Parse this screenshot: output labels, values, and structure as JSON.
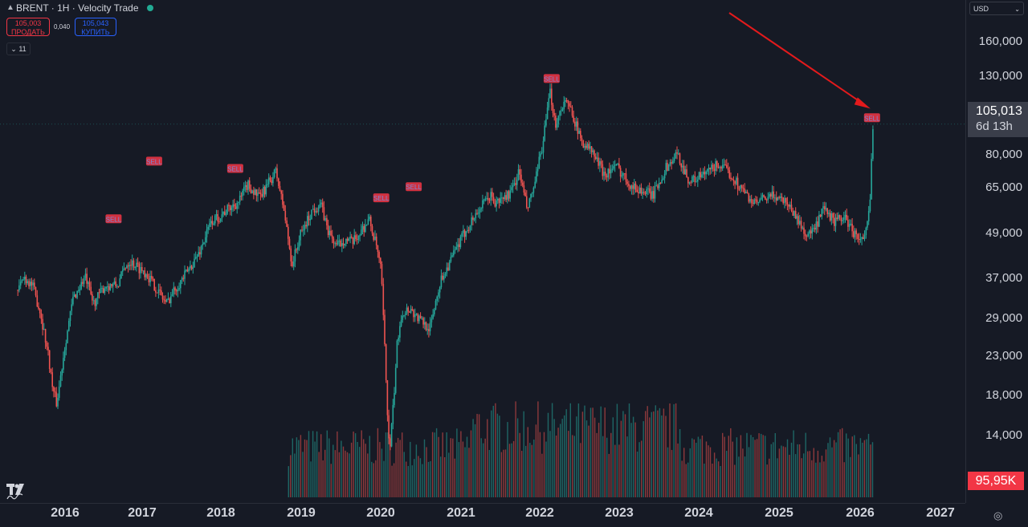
{
  "header": {
    "symbol": "BRENT · 1H · Velocity Trade"
  },
  "trade": {
    "sell_price": "105,003",
    "sell_label": "ПРОДАТЬ",
    "spread": "0,040",
    "buy_price": "105,043",
    "buy_label": "КУПИТЬ"
  },
  "indicators": {
    "count_label": "⌄ 11"
  },
  "price_axis": {
    "currency": "USD",
    "ticks": [
      "160,000",
      "130,000",
      "80,000",
      "65,000",
      "49,000",
      "37,000",
      "29,000",
      "23,000",
      "18,000",
      "14,000"
    ],
    "last_price": "105,013",
    "countdown": "6d 13h",
    "volume_last": "95,95K"
  },
  "time_axis": {
    "ticks": [
      "2016",
      "2017",
      "2018",
      "2019",
      "2020",
      "2021",
      "2022",
      "2023",
      "2024",
      "2025",
      "2026",
      "2027"
    ]
  },
  "colors": {
    "up": "#26a69a",
    "down": "#ef5350",
    "background": "#161a25",
    "arrow": "#e31a1c",
    "signal": "#f23645"
  },
  "chart_data": {
    "type": "line",
    "scale": "log",
    "ylim": [
      18,
      175
    ],
    "xlim": [
      2015.4,
      2027.3
    ],
    "series": [
      {
        "x": [
          2015.62,
          2015.7,
          2015.8,
          2015.9,
          2016.0,
          2016.05,
          2016.1,
          2016.2,
          2016.3,
          2016.45,
          2016.55,
          2016.7,
          2016.85,
          2016.95,
          2017.0,
          2017.2,
          2017.45,
          2017.55,
          2017.7,
          2017.85,
          2018.0,
          2018.2,
          2018.35,
          2018.45,
          2018.6,
          2018.7,
          2018.8,
          2018.9,
          2019.0,
          2019.1,
          2019.25,
          2019.35,
          2019.45,
          2019.55,
          2019.65,
          2019.75,
          2019.95,
          2020.05,
          2020.1,
          2020.15,
          2020.2,
          2020.25,
          2020.3,
          2020.35,
          2020.45,
          2020.55,
          2020.7,
          2020.8,
          2020.85,
          2021.0,
          2021.15,
          2021.3,
          2021.45,
          2021.5,
          2021.6,
          2021.7,
          2021.8,
          2021.9,
          2022.0,
          2022.1,
          2022.18,
          2022.25,
          2022.35,
          2022.45,
          2022.55,
          2022.7,
          2022.85,
          2023.0,
          2023.2,
          2023.45,
          2023.6,
          2023.75,
          2023.9,
          2024.1,
          2024.25,
          2024.4,
          2024.55,
          2024.7,
          2024.85,
          2024.95,
          2025.1,
          2025.25,
          2025.35,
          2025.45,
          2025.55,
          2025.7,
          2025.8,
          2025.95,
          2026.05,
          2026.12,
          2026.15,
          2026.16
        ],
        "y": [
          48,
          51,
          49,
          43,
          35,
          30,
          28,
          37,
          46,
          51,
          45,
          49,
          49,
          54,
          55,
          52,
          45,
          48,
          52,
          57,
          66,
          70,
          73,
          79,
          74,
          79,
          84,
          70,
          54,
          62,
          70,
          72,
          63,
          59,
          61,
          60,
          67,
          58,
          52,
          34,
          22,
          28,
          38,
          43,
          44,
          42,
          40,
          48,
          51,
          57,
          64,
          70,
          75,
          72,
          74,
          76,
          84,
          70,
          80,
          98,
          122,
          105,
          117,
          112,
          98,
          92,
          83,
          86,
          78,
          75,
          85,
          91,
          80,
          83,
          87,
          83,
          77,
          72,
          74,
          75,
          73,
          66,
          62,
          64,
          70,
          66,
          68,
          62,
          60,
          70,
          95,
          105
        ]
      }
    ],
    "volume": {
      "x_start": 2018.95,
      "x_end": 2026.16,
      "range": [
        0,
        320
      ],
      "last": 95.95
    },
    "signals": [
      {
        "x": 2016.8,
        "y": 67,
        "label": "SELL"
      },
      {
        "x": 2017.3,
        "y": 88,
        "label": "SELL"
      },
      {
        "x": 2018.3,
        "y": 85,
        "label": "SELL"
      },
      {
        "x": 2020.1,
        "y": 74,
        "label": "SELL"
      },
      {
        "x": 2020.5,
        "y": 78,
        "label": "SELL"
      },
      {
        "x": 2022.2,
        "y": 130,
        "label": "SELL"
      },
      {
        "x": 2026.15,
        "y": 108,
        "label": "SELL"
      }
    ]
  }
}
